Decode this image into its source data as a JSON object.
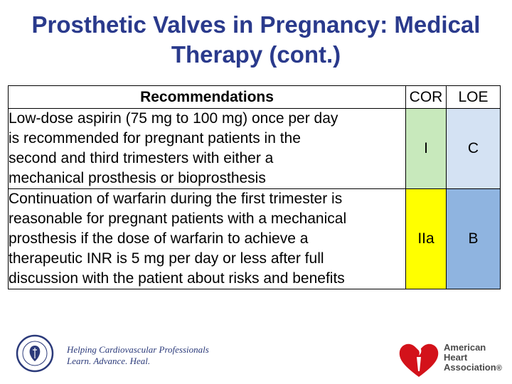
{
  "title": {
    "line1": "Prosthetic Valves in Pregnancy: Medical",
    "line2": "Therapy (cont.)"
  },
  "table": {
    "headers": {
      "recommendations": "Recommendations",
      "cor": "COR",
      "loe": "LOE"
    },
    "rows": [
      {
        "lines": [
          "Low-dose aspirin (75 mg to 100 mg) once per day",
          "is recommended for pregnant patients in the",
          "second and third trimesters with either a",
          "mechanical prosthesis or bioprosthesis"
        ],
        "cor": "I",
        "loe": "C"
      },
      {
        "lines": [
          "Continuation of warfarin during the first trimester is",
          "reasonable for pregnant patients with a mechanical",
          "prosthesis if the dose of warfarin to achieve a",
          "therapeutic INR is 5 mg per day or less after full",
          "discussion with the patient about risks and benefits"
        ],
        "cor": "IIa",
        "loe": "B"
      }
    ]
  },
  "footer": {
    "acc_tagline": [
      "Helping Cardiovascular Professionals",
      "Learn. Advance. Heal."
    ],
    "aha_logo_text": [
      "American",
      "Heart",
      "Association"
    ],
    "aha_trademark": "®"
  },
  "colors": {
    "title": "#2a3a8c",
    "cor_i": "#c8e9bc",
    "loe_c": "#d4e2f3",
    "cor_iia": "#ffff00",
    "loe_b": "#8fb4e0",
    "aha_red": "#d3121a"
  }
}
